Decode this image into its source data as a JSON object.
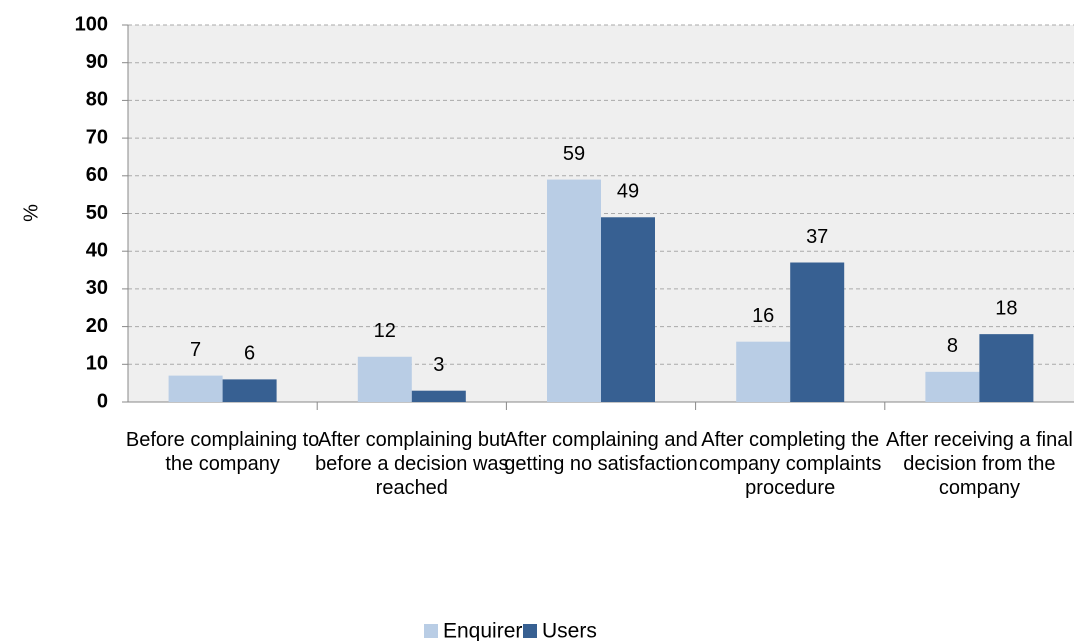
{
  "chart_data": {
    "type": "bar",
    "y_label": "%",
    "categories": [
      "Before complaining to the company",
      "After complaining but before a decision was reached",
      "After complaining and getting no satisfaction",
      "After completing the company complaints procedure",
      "After receiving a final decision from the company"
    ],
    "series": [
      {
        "name": "Enquirers",
        "color": "#b9cde5",
        "values": [
          7,
          12,
          59,
          16,
          8
        ]
      },
      {
        "name": "Users",
        "color": "#376092",
        "values": [
          6,
          3,
          49,
          37,
          18
        ]
      }
    ],
    "ylim": [
      0,
      100
    ],
    "yticks": [
      0,
      10,
      20,
      30,
      40,
      50,
      60,
      70,
      80,
      90,
      100
    ],
    "grid": true,
    "legend": "bottom"
  }
}
